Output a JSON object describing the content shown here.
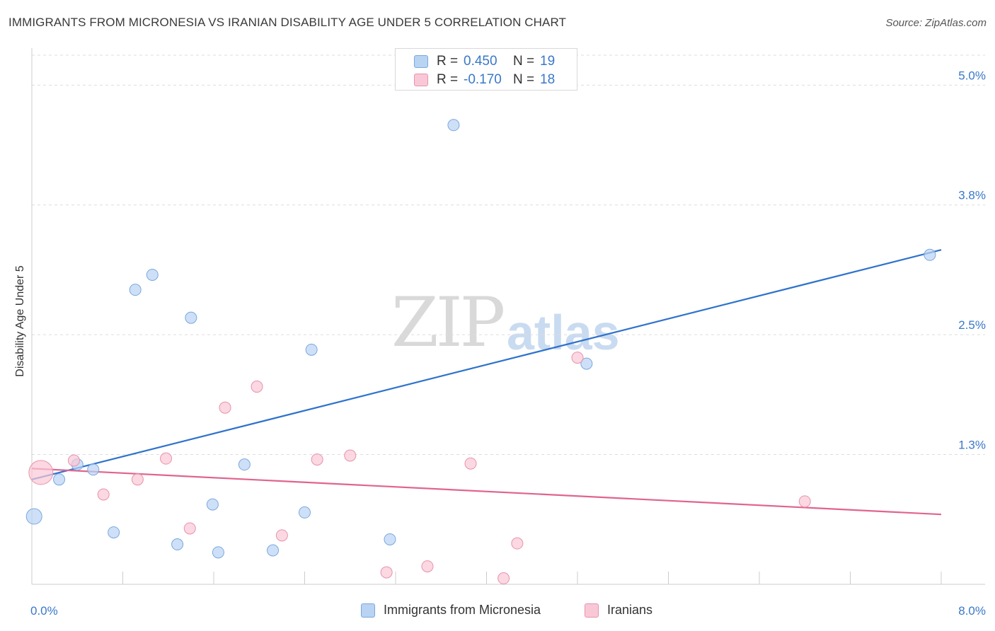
{
  "header": {
    "title": "IMMIGRANTS FROM MICRONESIA VS IRANIAN DISABILITY AGE UNDER 5 CORRELATION CHART",
    "source": "Source: ZipAtlas.com"
  },
  "watermark": {
    "zip": "ZIP",
    "atlas": "atlas"
  },
  "legend_top": [
    {
      "r_label": "R =",
      "r_value": "0.450",
      "n_label": "N =",
      "n_value": "19"
    },
    {
      "r_label": "R =",
      "r_value": "-0.170",
      "n_label": "N =",
      "n_value": "18"
    }
  ],
  "legend_bottom": [
    {
      "label": "Immigrants from Micronesia"
    },
    {
      "label": "Iranians"
    }
  ],
  "colors": {
    "micronesia_fill": "#b9d3f3",
    "micronesia_stroke": "#7aa7df",
    "micronesia_line": "#2f72cc",
    "iranians_fill": "#f9c8d6",
    "iranians_stroke": "#e892ad",
    "iranians_line": "#e0648f",
    "tick_text": "#3a78c8",
    "grid": "#dddddd"
  },
  "chart_data": {
    "type": "scatter",
    "xlabel": "",
    "ylabel": "Disability Age Under 5",
    "xlim": [
      0,
      8.0
    ],
    "ylim": [
      0,
      5.3
    ],
    "x_tick_labels": [
      {
        "value": 0,
        "label": "0.0%"
      },
      {
        "value": 8.0,
        "label": "8.0%"
      }
    ],
    "y_tick_labels": [
      {
        "value": 1.3,
        "label": "1.3%"
      },
      {
        "value": 2.5,
        "label": "2.5%"
      },
      {
        "value": 3.8,
        "label": "3.8%"
      },
      {
        "value": 5.0,
        "label": "5.0%"
      }
    ],
    "grid": "horizontal dashed",
    "legend_position": "top-center",
    "series": [
      {
        "name": "Immigrants from Micronesia",
        "points": [
          [
            0.02,
            0.68
          ],
          [
            0.24,
            1.05
          ],
          [
            0.4,
            1.2
          ],
          [
            0.54,
            1.15
          ],
          [
            0.72,
            0.52
          ],
          [
            0.91,
            2.95
          ],
          [
            1.06,
            3.1
          ],
          [
            1.28,
            0.4
          ],
          [
            1.4,
            2.67
          ],
          [
            1.59,
            0.8
          ],
          [
            1.64,
            0.32
          ],
          [
            1.87,
            1.2
          ],
          [
            2.12,
            0.34
          ],
          [
            2.4,
            0.72
          ],
          [
            2.46,
            2.35
          ],
          [
            3.15,
            0.45
          ],
          [
            3.71,
            4.6
          ],
          [
            4.88,
            2.21
          ],
          [
            7.9,
            3.3
          ]
        ],
        "trend": [
          [
            0.0,
            1.05
          ],
          [
            8.0,
            3.35
          ]
        ]
      },
      {
        "name": "Iranians",
        "points": [
          [
            0.08,
            1.12
          ],
          [
            0.37,
            1.24
          ],
          [
            0.63,
            0.9
          ],
          [
            0.93,
            1.05
          ],
          [
            1.18,
            1.26
          ],
          [
            1.39,
            0.56
          ],
          [
            1.7,
            1.77
          ],
          [
            1.98,
            1.98
          ],
          [
            2.2,
            0.49
          ],
          [
            2.51,
            1.25
          ],
          [
            2.8,
            1.29
          ],
          [
            3.12,
            0.12
          ],
          [
            3.48,
            0.18
          ],
          [
            3.86,
            1.21
          ],
          [
            4.15,
            0.06
          ],
          [
            4.27,
            0.41
          ],
          [
            4.8,
            2.27
          ],
          [
            6.8,
            0.83
          ]
        ],
        "trend": [
          [
            0.0,
            1.16
          ],
          [
            8.0,
            0.7
          ]
        ]
      }
    ]
  }
}
